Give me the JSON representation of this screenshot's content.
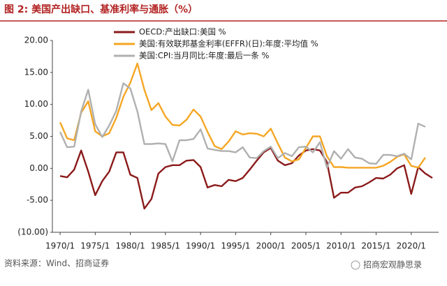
{
  "chart_data": {
    "type": "line",
    "title": "图 2: 美国产出缺口、基准利率与通胀（%）",
    "source": "资料来源：Wind、招商证券",
    "watermark": "招商宏观静思录",
    "x": [
      1970,
      1971,
      1972,
      1973,
      1974,
      1975,
      1976,
      1977,
      1978,
      1979,
      1980,
      1981,
      1982,
      1983,
      1984,
      1985,
      1986,
      1987,
      1988,
      1989,
      1990,
      1991,
      1992,
      1993,
      1994,
      1995,
      1996,
      1997,
      1998,
      1999,
      2000,
      2001,
      2002,
      2003,
      2004,
      2005,
      2006,
      2007,
      2008,
      2009,
      2010,
      2011,
      2012,
      2013,
      2014,
      2015,
      2016,
      2017,
      2018,
      2019,
      2020,
      2021,
      2022,
      2023
    ],
    "xlim": [
      1968.9,
      2023.9
    ],
    "xticks": [
      {
        "value": 1970,
        "label": "1970/1"
      },
      {
        "value": 1975,
        "label": "1975/1"
      },
      {
        "value": 1980,
        "label": "1980/1"
      },
      {
        "value": 1985,
        "label": "1985/1"
      },
      {
        "value": 1990,
        "label": "1990/1"
      },
      {
        "value": 1995,
        "label": "1995/1"
      },
      {
        "value": 2000,
        "label": "2000/1"
      },
      {
        "value": 2005,
        "label": "2005/1"
      },
      {
        "value": 2010,
        "label": "2010/1"
      },
      {
        "value": 2015,
        "label": "2015/1"
      },
      {
        "value": 2020,
        "label": "2020/1"
      }
    ],
    "ylim": [
      -10,
      20
    ],
    "yticks": [
      {
        "value": 20,
        "label": "20.00"
      },
      {
        "value": 15,
        "label": "15.00"
      },
      {
        "value": 10,
        "label": "10.00"
      },
      {
        "value": 5,
        "label": "5.00"
      },
      {
        "value": 0,
        "label": "0.00"
      },
      {
        "value": -5,
        "label": "-5.00"
      },
      {
        "value": -10,
        "label": "(10.00)"
      }
    ],
    "grid": false,
    "series": [
      {
        "name": "OECD:产出缺口:美国 %",
        "color": "#8b1a1a",
        "values": [
          -1.2,
          -1.4,
          -0.2,
          2.8,
          -0.5,
          -4.2,
          -2.0,
          -0.5,
          2.5,
          2.5,
          -1.0,
          -1.5,
          -6.3,
          -4.8,
          -0.8,
          0.2,
          0.5,
          0.5,
          1.2,
          1.3,
          0.2,
          -3.0,
          -2.6,
          -2.8,
          -1.8,
          -2.0,
          -1.5,
          -0.2,
          1.2,
          2.5,
          3.2,
          1.2,
          0.5,
          0.8,
          2.0,
          2.8,
          3.0,
          2.8,
          1.0,
          -4.6,
          -3.8,
          -3.8,
          -3.0,
          -2.8,
          -2.2,
          -1.5,
          -1.6,
          -1.0,
          0.0,
          0.5,
          -4.0,
          0.2,
          -0.8,
          -1.5
        ]
      },
      {
        "name": "美国:有效联邦基金利率(EFFR)(日):年度:平均值 %",
        "color": "#f5a623",
        "values": [
          7.2,
          4.7,
          4.4,
          8.7,
          10.5,
          5.8,
          5.0,
          5.5,
          7.9,
          11.2,
          13.4,
          16.4,
          12.3,
          9.1,
          10.2,
          8.1,
          6.8,
          6.7,
          7.6,
          9.2,
          8.1,
          5.7,
          3.5,
          3.0,
          4.2,
          5.8,
          5.3,
          5.5,
          5.4,
          5.0,
          6.2,
          3.9,
          1.7,
          1.1,
          1.4,
          3.2,
          5.0,
          5.0,
          1.9,
          0.2,
          0.2,
          0.1,
          0.1,
          0.1,
          0.1,
          0.1,
          0.4,
          1.0,
          1.8,
          2.2,
          0.4,
          0.1,
          1.7,
          null
        ]
      },
      {
        "name": "美国:CPI:当月同比:年度:最后一条 %",
        "color": "#b0b0b0",
        "values": [
          5.7,
          3.3,
          3.4,
          8.9,
          12.3,
          6.9,
          4.9,
          6.7,
          9.0,
          13.3,
          12.5,
          8.9,
          3.8,
          3.8,
          3.9,
          3.8,
          1.1,
          4.4,
          4.4,
          4.6,
          6.1,
          3.1,
          2.9,
          2.7,
          2.7,
          2.5,
          3.3,
          1.7,
          1.6,
          2.7,
          3.4,
          1.6,
          2.4,
          1.9,
          3.3,
          3.4,
          2.5,
          4.1,
          0.1,
          2.7,
          1.5,
          3.0,
          1.7,
          1.5,
          0.8,
          0.7,
          2.1,
          2.1,
          1.9,
          2.3,
          1.4,
          7.0,
          6.5,
          null
        ]
      }
    ],
    "legend": "top-right"
  }
}
